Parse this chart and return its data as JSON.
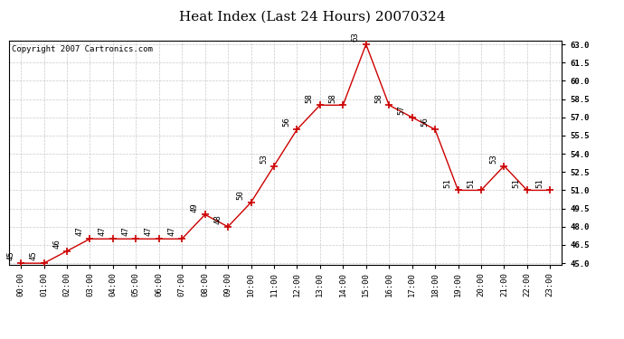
{
  "title": "Heat Index (Last 24 Hours) 20070324",
  "copyright": "Copyright 2007 Cartronics.com",
  "hours": [
    "00:00",
    "01:00",
    "02:00",
    "03:00",
    "04:00",
    "05:00",
    "06:00",
    "07:00",
    "08:00",
    "09:00",
    "10:00",
    "11:00",
    "12:00",
    "13:00",
    "14:00",
    "15:00",
    "16:00",
    "17:00",
    "18:00",
    "19:00",
    "20:00",
    "21:00",
    "22:00",
    "23:00"
  ],
  "values": [
    45,
    45,
    46,
    47,
    47,
    47,
    47,
    47,
    49,
    48,
    50,
    53,
    56,
    58,
    58,
    63,
    58,
    57,
    56,
    51,
    51,
    53,
    51,
    51
  ],
  "ylim_min": 45.0,
  "ylim_max": 63.0,
  "yticks": [
    45.0,
    46.5,
    48.0,
    49.5,
    51.0,
    52.5,
    54.0,
    55.5,
    57.0,
    58.5,
    60.0,
    61.5,
    63.0
  ],
  "line_color": "#cc0000",
  "marker": "+",
  "marker_size": 6,
  "marker_color": "#cc0000",
  "bg_color": "#ffffff",
  "plot_bg_color": "#ffffff",
  "grid_color": "#bbbbbb",
  "title_fontsize": 11,
  "label_fontsize": 6.5,
  "annotation_fontsize": 6.5,
  "copyright_fontsize": 6.5
}
